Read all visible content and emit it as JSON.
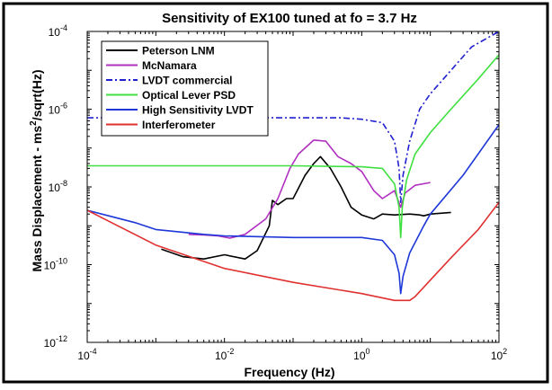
{
  "chart_data": {
    "type": "line",
    "title": "Sensitivity of EX100 tuned at fo = 3.7 Hz",
    "xlabel": "Frequency (Hz)",
    "ylabel_main": "Mass Displacement - ms",
    "ylabel_sup": "2",
    "ylabel_tail": "/sqrt(Hz)",
    "x_scale": "log",
    "y_scale": "log",
    "xlim": [
      0.0001,
      100
    ],
    "ylim": [
      1e-12,
      0.0001
    ],
    "grid": false,
    "legend_position": "top-left",
    "x_ticks": [
      {
        "value": 0.0001,
        "base": "10",
        "exp": "-4"
      },
      {
        "value": 0.01,
        "base": "10",
        "exp": "-2"
      },
      {
        "value": 1,
        "base": "10",
        "exp": "0"
      },
      {
        "value": 100,
        "base": "10",
        "exp": "2"
      }
    ],
    "y_ticks": [
      {
        "value": 1e-12,
        "base": "10",
        "exp": "-12"
      },
      {
        "value": 1e-10,
        "base": "10",
        "exp": "-10"
      },
      {
        "value": 1e-08,
        "base": "10",
        "exp": "-8"
      },
      {
        "value": 1e-06,
        "base": "10",
        "exp": "-6"
      },
      {
        "value": 0.0001,
        "base": "10",
        "exp": "-4"
      }
    ],
    "series": [
      {
        "name": "Peterson LNM",
        "color": "#000000",
        "dash": "solid",
        "points": [
          [
            0.0012,
            2.5e-10
          ],
          [
            0.0025,
            1.6e-10
          ],
          [
            0.005,
            1.4e-10
          ],
          [
            0.01,
            1.8e-10
          ],
          [
            0.02,
            1.4e-10
          ],
          [
            0.03,
            2.3e-10
          ],
          [
            0.045,
            1e-09
          ],
          [
            0.05,
            4.5e-09
          ],
          [
            0.06,
            3.5e-09
          ],
          [
            0.08,
            5e-09
          ],
          [
            0.1,
            5e-09
          ],
          [
            0.15,
            2e-08
          ],
          [
            0.2,
            4e-08
          ],
          [
            0.25,
            6e-08
          ],
          [
            0.35,
            3e-08
          ],
          [
            0.5,
            1e-08
          ],
          [
            0.7,
            3e-09
          ],
          [
            1.0,
            1.9e-09
          ],
          [
            1.5,
            1.5e-09
          ],
          [
            2,
            2e-09
          ],
          [
            3,
            1.9e-09
          ],
          [
            5,
            2e-09
          ],
          [
            7,
            1.9e-09
          ],
          [
            8,
            1.8e-09
          ],
          [
            10,
            2e-09
          ],
          [
            20,
            2.2e-09
          ]
        ]
      },
      {
        "name": "McNamara",
        "color": "#b030c0",
        "dash": "solid",
        "points": [
          [
            0.003,
            6e-10
          ],
          [
            0.005,
            5.8e-10
          ],
          [
            0.008,
            5.5e-10
          ],
          [
            0.012,
            4.8e-10
          ],
          [
            0.02,
            6e-10
          ],
          [
            0.04,
            1.5e-09
          ],
          [
            0.06,
            5e-09
          ],
          [
            0.09,
            3e-08
          ],
          [
            0.12,
            7e-08
          ],
          [
            0.2,
            1.6e-07
          ],
          [
            0.3,
            1.5e-07
          ],
          [
            0.45,
            6e-08
          ],
          [
            0.7,
            4e-08
          ],
          [
            1.0,
            2.5e-08
          ],
          [
            1.5,
            8e-09
          ],
          [
            2,
            5e-09
          ],
          [
            3,
            8e-09
          ],
          [
            3.7,
            3e-09
          ],
          [
            4.3,
            7e-09
          ],
          [
            6,
            1.1e-08
          ],
          [
            10,
            1.3e-08
          ]
        ]
      },
      {
        "name": "LVDT commercial",
        "color": "#2020d0",
        "dash": "dashdot",
        "points": [
          [
            0.0001,
            6e-07
          ],
          [
            0.001,
            6e-07
          ],
          [
            0.01,
            6e-07
          ],
          [
            0.1,
            6e-07
          ],
          [
            0.5,
            6e-07
          ],
          [
            1.0,
            5.5e-07
          ],
          [
            2,
            4.5e-07
          ],
          [
            3,
            1.5e-07
          ],
          [
            3.5,
            3e-08
          ],
          [
            3.7,
            4e-09
          ],
          [
            4,
            2e-08
          ],
          [
            5,
            1.5e-07
          ],
          [
            7,
            1e-06
          ],
          [
            10,
            2.5e-06
          ],
          [
            20,
            1e-05
          ],
          [
            40,
            4e-05
          ],
          [
            100,
            0.0001
          ]
        ]
      },
      {
        "name": "Optical Lever PSD",
        "color": "#40e040",
        "dash": "solid",
        "points": [
          [
            0.0001,
            3.5e-08
          ],
          [
            0.01,
            3.5e-08
          ],
          [
            0.1,
            3.5e-08
          ],
          [
            1.0,
            3.3e-08
          ],
          [
            2,
            3e-08
          ],
          [
            3,
            1.2e-08
          ],
          [
            3.5,
            3e-09
          ],
          [
            3.7,
            5e-10
          ],
          [
            3.9,
            3e-09
          ],
          [
            4.5,
            1.5e-08
          ],
          [
            6,
            7e-08
          ],
          [
            10,
            2.5e-07
          ],
          [
            20,
            1e-06
          ],
          [
            50,
            6e-06
          ],
          [
            100,
            2.5e-05
          ]
        ]
      },
      {
        "name": "High Sensitivity LVDT",
        "color": "#1e38d8",
        "dash": "solid",
        "points": [
          [
            0.0001,
            2.5e-09
          ],
          [
            0.0005,
            1.2e-09
          ],
          [
            0.001,
            8e-10
          ],
          [
            0.005,
            6e-10
          ],
          [
            0.01,
            5.5e-10
          ],
          [
            0.1,
            5e-10
          ],
          [
            0.5,
            5e-10
          ],
          [
            1.0,
            5e-10
          ],
          [
            2,
            4.2e-10
          ],
          [
            3,
            1.8e-10
          ],
          [
            3.5,
            6e-11
          ],
          [
            3.7,
            1.8e-11
          ],
          [
            4,
            5e-11
          ],
          [
            5,
            2e-10
          ],
          [
            8,
            1e-09
          ],
          [
            10,
            2e-09
          ],
          [
            30,
            2e-08
          ],
          [
            100,
            4e-07
          ]
        ]
      },
      {
        "name": "Interferometer",
        "color": "#e03030",
        "dash": "solid",
        "points": [
          [
            0.0001,
            2.5e-09
          ],
          [
            0.001,
            3.2e-10
          ],
          [
            0.01,
            8e-11
          ],
          [
            0.1,
            3.5e-11
          ],
          [
            1.0,
            1.8e-11
          ],
          [
            3,
            1.2e-11
          ],
          [
            5,
            1.2e-11
          ],
          [
            6,
            1.5e-11
          ],
          [
            10,
            4e-11
          ],
          [
            20,
            1.5e-10
          ],
          [
            50,
            8e-10
          ],
          [
            100,
            4e-09
          ]
        ]
      }
    ]
  }
}
